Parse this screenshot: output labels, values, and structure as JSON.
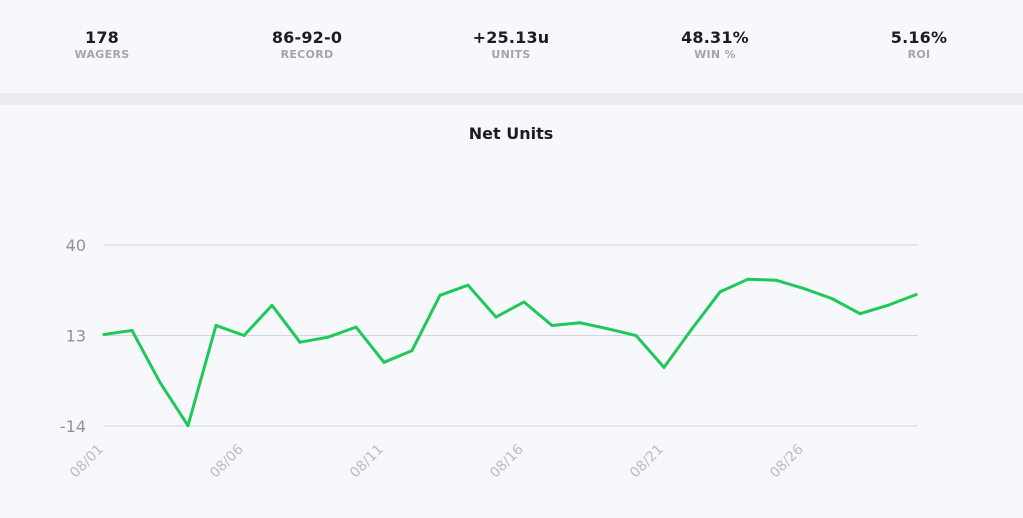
{
  "stats": [
    {
      "value": "178",
      "label": "WAGERS"
    },
    {
      "value": "86-92-0",
      "label": "RECORD"
    },
    {
      "value": "+25.13u",
      "label": "UNITS"
    },
    {
      "value": "48.31%",
      "label": "WIN %"
    },
    {
      "value": "5.16%",
      "label": "ROI"
    }
  ],
  "colors": {
    "line": "#1ec95a",
    "grid": "#d4d6de",
    "tick_text": "#8f929b",
    "title_text": "#1c1c22"
  },
  "chart_data": {
    "type": "line",
    "title": "Net Units",
    "xlabel": "",
    "ylabel": "",
    "ylim": [
      -14,
      40
    ],
    "yticks": [
      40,
      13,
      -14
    ],
    "x": [
      "08/01",
      "08/02",
      "08/03",
      "08/04",
      "08/05",
      "08/06",
      "08/07",
      "08/08",
      "08/09",
      "08/10",
      "08/11",
      "08/12",
      "08/13",
      "08/14",
      "08/15",
      "08/16",
      "08/17",
      "08/18",
      "08/19",
      "08/20",
      "08/21",
      "08/22",
      "08/23",
      "08/24",
      "08/25",
      "08/26",
      "08/27",
      "08/28",
      "08/29",
      "08/30"
    ],
    "xtick_labels": [
      "08/01",
      "08/06",
      "08/11",
      "08/16",
      "08/21",
      "08/26"
    ],
    "series": [
      {
        "values": [
          13.3,
          14.5,
          -1,
          -13.9,
          16,
          13,
          22,
          11,
          12.5,
          15.5,
          5,
          8.5,
          25,
          28,
          18.5,
          23,
          16,
          16.8,
          15,
          13,
          3.5,
          15,
          26,
          29.8,
          29.5,
          27,
          24,
          19.5,
          22,
          25.2
        ]
      }
    ]
  }
}
